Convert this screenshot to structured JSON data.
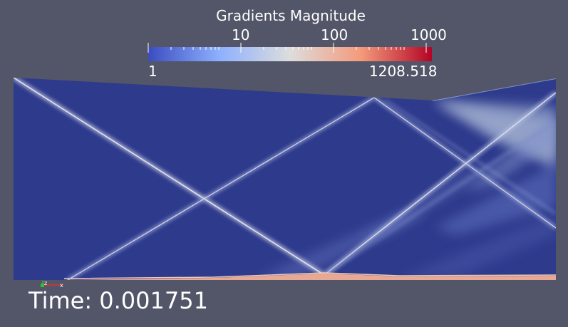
{
  "colorbar": {
    "title": "Gradients Magnitude",
    "ticks": [
      "10",
      "100",
      "1000"
    ],
    "min_label": "1",
    "max_label": "1208.518",
    "scale": "log",
    "colors": [
      "#3b4cc0",
      "#8db0fe",
      "#dddddd",
      "#f49a7b",
      "#b40426"
    ]
  },
  "time": {
    "label": "Time: 0.001751"
  },
  "axes_triad": [
    "z",
    "x"
  ],
  "background_color": "#525668",
  "field_color": "#2e3a8c"
}
